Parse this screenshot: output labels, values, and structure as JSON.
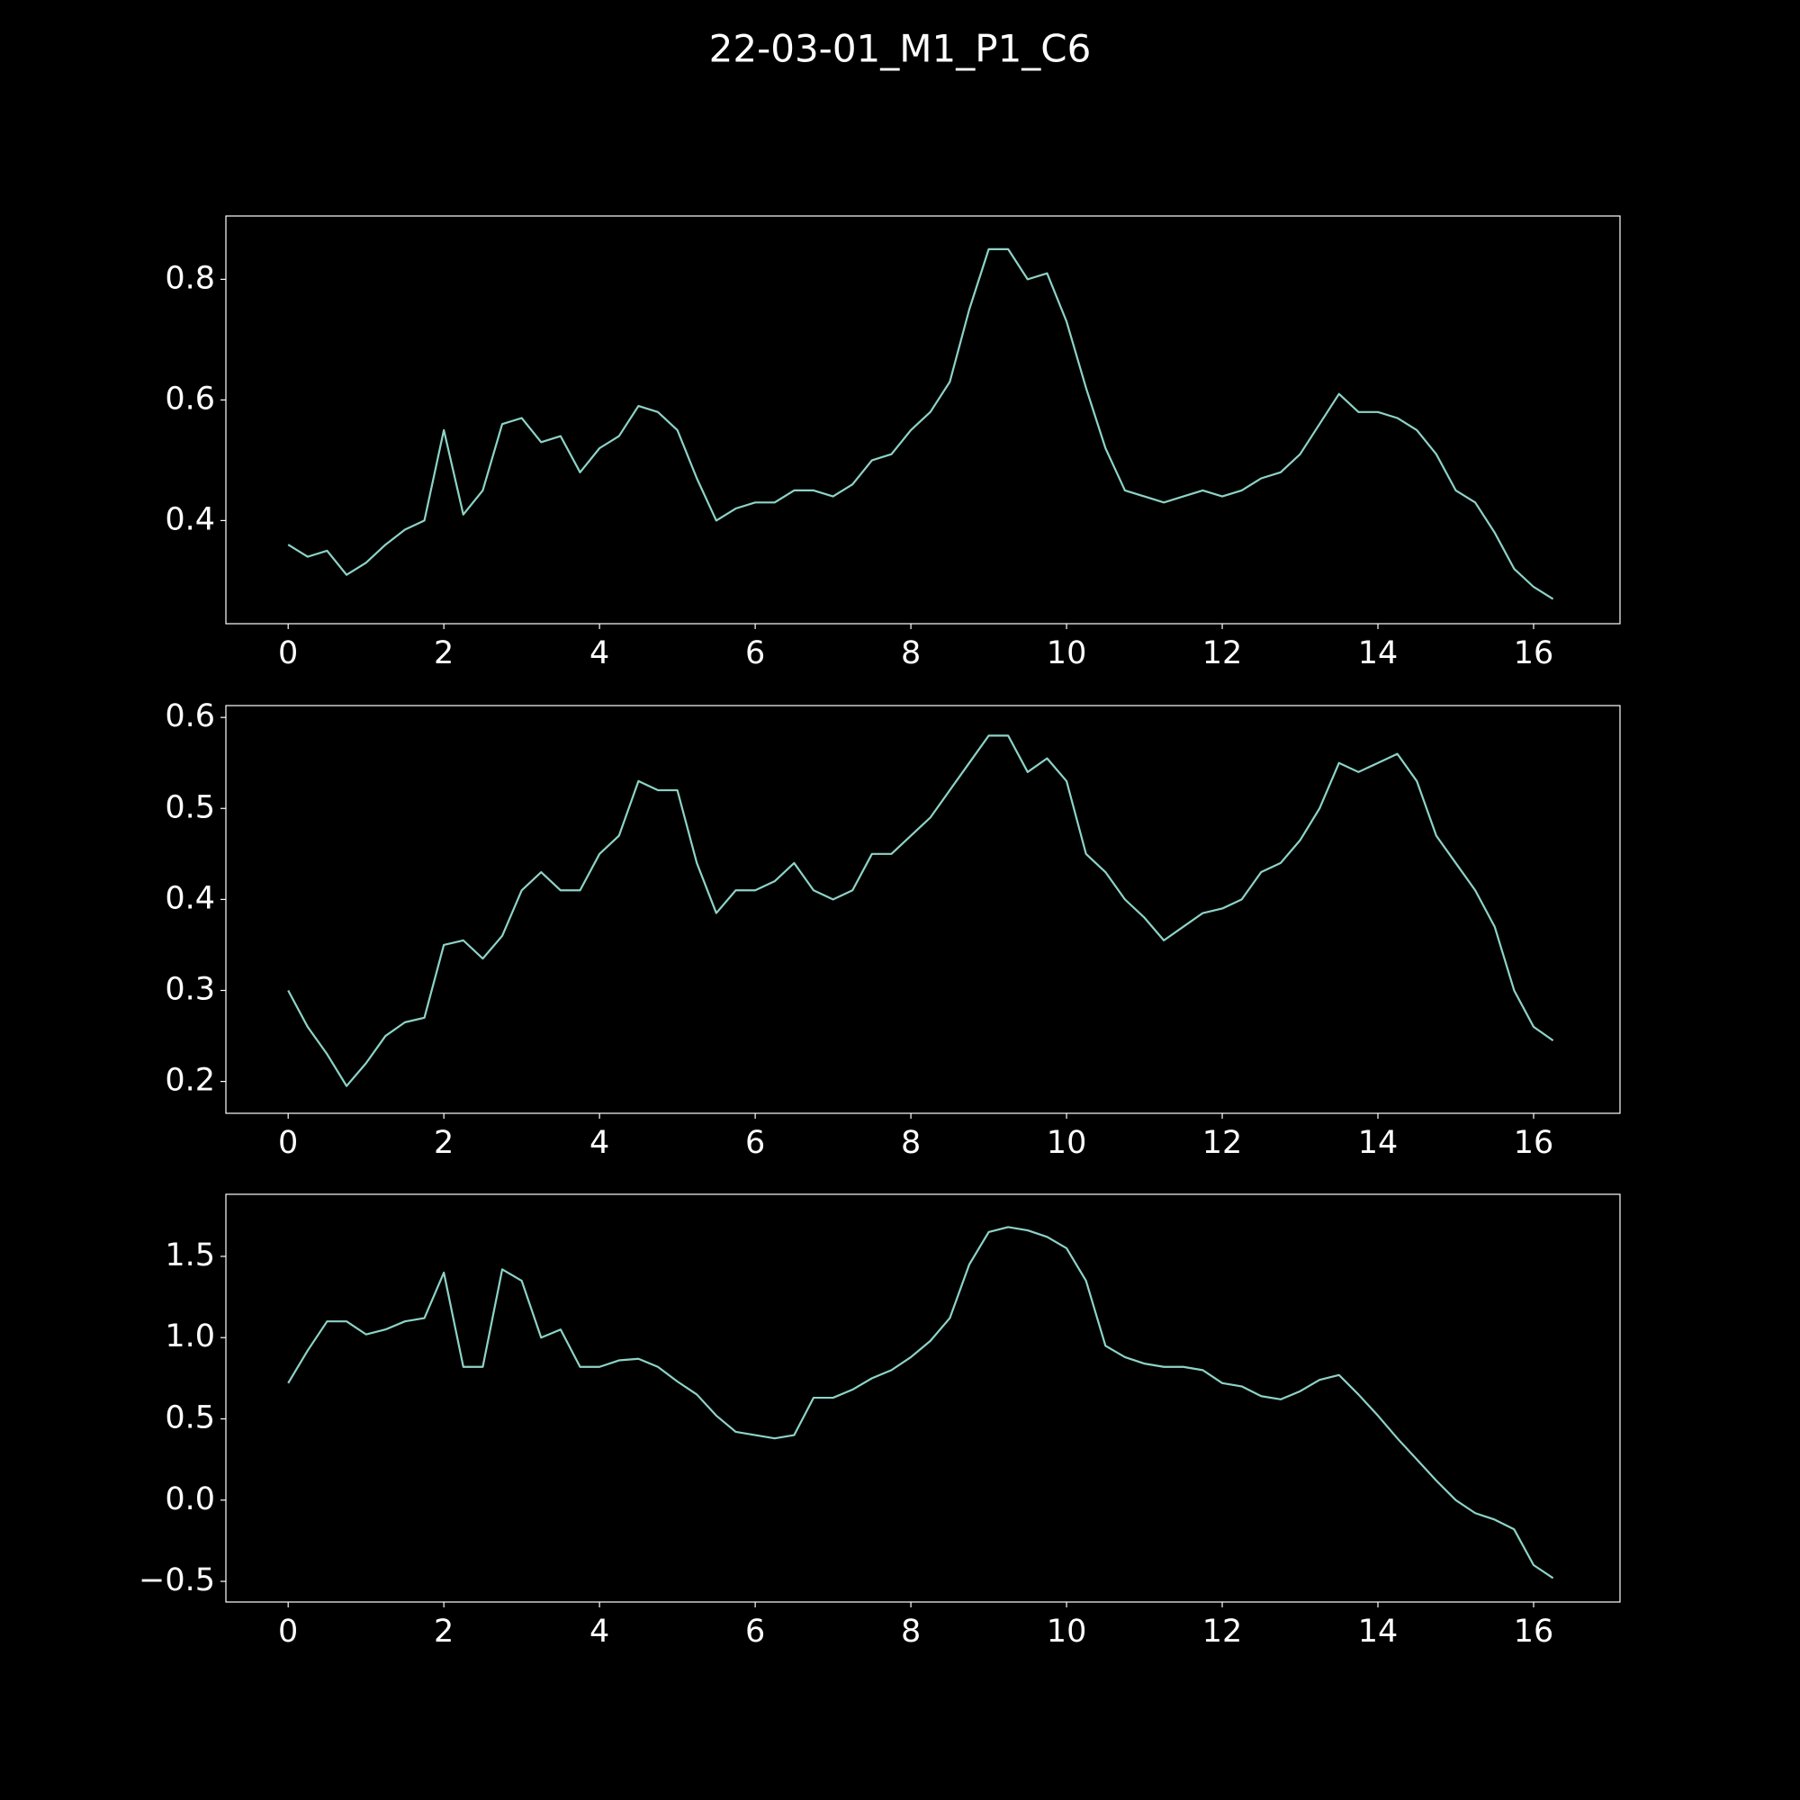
{
  "title": "22-03-01_M1_P1_C6",
  "chart_data": [
    {
      "type": "line",
      "color": "#8dd3c7",
      "x": [
        0,
        0.25,
        0.5,
        0.75,
        1,
        1.25,
        1.5,
        1.75,
        2,
        2.25,
        2.5,
        2.75,
        3,
        3.25,
        3.5,
        3.75,
        4,
        4.25,
        4.5,
        4.75,
        5,
        5.25,
        5.5,
        5.75,
        6,
        6.25,
        6.5,
        6.75,
        7,
        7.25,
        7.5,
        7.75,
        8,
        8.25,
        8.5,
        8.75,
        9,
        9.25,
        9.5,
        9.75,
        10,
        10.25,
        10.5,
        10.75,
        11,
        11.25,
        11.5,
        11.75,
        12,
        12.25,
        12.5,
        12.75,
        13,
        13.25,
        13.5,
        13.75,
        14,
        14.25,
        14.5,
        14.75,
        15,
        15.25,
        15.5,
        15.75,
        16,
        16.25
      ],
      "values": [
        0.36,
        0.34,
        0.35,
        0.31,
        0.33,
        0.36,
        0.385,
        0.4,
        0.55,
        0.41,
        0.45,
        0.56,
        0.57,
        0.53,
        0.54,
        0.48,
        0.52,
        0.54,
        0.59,
        0.58,
        0.55,
        0.47,
        0.4,
        0.42,
        0.43,
        0.43,
        0.45,
        0.45,
        0.44,
        0.46,
        0.5,
        0.51,
        0.55,
        0.58,
        0.63,
        0.75,
        0.85,
        0.85,
        0.8,
        0.81,
        0.73,
        0.62,
        0.52,
        0.45,
        0.44,
        0.43,
        0.44,
        0.45,
        0.44,
        0.45,
        0.47,
        0.48,
        0.51,
        0.56,
        0.61,
        0.58,
        0.58,
        0.57,
        0.55,
        0.51,
        0.45,
        0.43,
        0.38,
        0.32,
        0.29,
        0.27
      ],
      "xlim": [
        -0.8,
        17.11
      ],
      "ylim": [
        0.229,
        0.905
      ],
      "xticks": [
        0,
        2,
        4,
        6,
        8,
        10,
        12,
        14,
        16
      ],
      "yticks": [
        0.4,
        0.6,
        0.8
      ]
    },
    {
      "type": "line",
      "color": "#8dd3c7",
      "x": [
        0,
        0.25,
        0.5,
        0.75,
        1,
        1.25,
        1.5,
        1.75,
        2,
        2.25,
        2.5,
        2.75,
        3,
        3.25,
        3.5,
        3.75,
        4,
        4.25,
        4.5,
        4.75,
        5,
        5.25,
        5.5,
        5.75,
        6,
        6.25,
        6.5,
        6.75,
        7,
        7.25,
        7.5,
        7.75,
        8,
        8.25,
        8.5,
        8.75,
        9,
        9.25,
        9.5,
        9.75,
        10,
        10.25,
        10.5,
        10.75,
        11,
        11.25,
        11.5,
        11.75,
        12,
        12.25,
        12.5,
        12.75,
        13,
        13.25,
        13.5,
        13.75,
        14,
        14.25,
        14.5,
        14.75,
        15,
        15.25,
        15.5,
        15.75,
        16,
        16.25
      ],
      "values": [
        0.3,
        0.26,
        0.23,
        0.195,
        0.22,
        0.25,
        0.265,
        0.27,
        0.35,
        0.355,
        0.335,
        0.36,
        0.41,
        0.43,
        0.41,
        0.41,
        0.45,
        0.47,
        0.53,
        0.52,
        0.52,
        0.44,
        0.385,
        0.41,
        0.41,
        0.42,
        0.44,
        0.41,
        0.4,
        0.41,
        0.45,
        0.45,
        0.47,
        0.49,
        0.52,
        0.55,
        0.58,
        0.58,
        0.54,
        0.555,
        0.53,
        0.45,
        0.43,
        0.4,
        0.38,
        0.355,
        0.37,
        0.385,
        0.39,
        0.4,
        0.43,
        0.44,
        0.465,
        0.5,
        0.55,
        0.54,
        0.55,
        0.56,
        0.53,
        0.47,
        0.44,
        0.41,
        0.37,
        0.3,
        0.26,
        0.245
      ],
      "xlim": [
        -0.8,
        17.11
      ],
      "ylim": [
        0.165,
        0.613
      ],
      "xticks": [
        0,
        2,
        4,
        6,
        8,
        10,
        12,
        14,
        16
      ],
      "yticks": [
        0.2,
        0.3,
        0.4,
        0.5,
        0.6
      ]
    },
    {
      "type": "line",
      "color": "#8dd3c7",
      "x": [
        0,
        0.25,
        0.5,
        0.75,
        1,
        1.25,
        1.5,
        1.75,
        2,
        2.25,
        2.5,
        2.75,
        3,
        3.25,
        3.5,
        3.75,
        4,
        4.25,
        4.5,
        4.75,
        5,
        5.25,
        5.5,
        5.75,
        6,
        6.25,
        6.5,
        6.75,
        7,
        7.25,
        7.5,
        7.75,
        8,
        8.25,
        8.5,
        8.75,
        9,
        9.25,
        9.5,
        9.75,
        10,
        10.25,
        10.5,
        10.75,
        11,
        11.25,
        11.5,
        11.75,
        12,
        12.25,
        12.5,
        12.75,
        13,
        13.25,
        13.5,
        13.75,
        14,
        14.25,
        14.5,
        14.75,
        15,
        15.25,
        15.5,
        15.75,
        16,
        16.25
      ],
      "values": [
        0.72,
        0.92,
        1.1,
        1.1,
        1.02,
        1.05,
        1.1,
        1.12,
        1.4,
        0.82,
        0.82,
        1.42,
        1.35,
        1.0,
        1.05,
        0.82,
        0.82,
        0.86,
        0.87,
        0.82,
        0.73,
        0.65,
        0.52,
        0.42,
        0.4,
        0.38,
        0.4,
        0.63,
        0.63,
        0.68,
        0.75,
        0.8,
        0.88,
        0.98,
        1.12,
        1.45,
        1.65,
        1.68,
        1.66,
        1.62,
        1.55,
        1.35,
        0.95,
        0.88,
        0.84,
        0.82,
        0.82,
        0.8,
        0.72,
        0.7,
        0.64,
        0.62,
        0.67,
        0.74,
        0.77,
        0.65,
        0.52,
        0.38,
        0.25,
        0.12,
        0.0,
        -0.08,
        -0.12,
        -0.18,
        -0.4,
        -0.48
      ],
      "xlim": [
        -0.8,
        17.11
      ],
      "ylim": [
        -0.627,
        1.882
      ],
      "xticks": [
        0,
        2,
        4,
        6,
        8,
        10,
        12,
        14,
        16
      ],
      "yticks": [
        {
          "value": -0.5,
          "label": "−0.5"
        },
        {
          "value": 0,
          "label": "0.0"
        },
        0.5,
        {
          "value": 1,
          "label": "1.0"
        },
        1.5
      ]
    }
  ]
}
